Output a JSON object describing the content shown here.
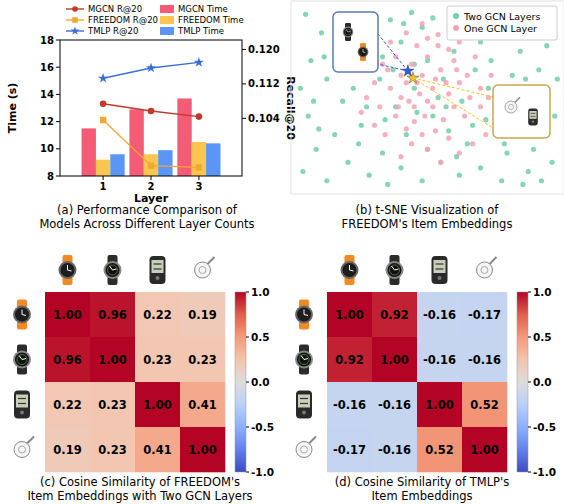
{
  "chart_data": [
    {
      "type": "bar",
      "title": [
        "(a) Performance Comparison of",
        "Models Across Different Layer Counts"
      ],
      "x_label": "Layer",
      "y_label": "Time (s)",
      "y2_label": "Recall@20",
      "categories": [
        "1",
        "2",
        "3"
      ],
      "ylim": [
        8,
        18
      ],
      "yticks": [
        8,
        10,
        12,
        14,
        16,
        18
      ],
      "y2lim": [
        0.0906,
        0.1222
      ],
      "y2ticks": [
        0.104,
        0.112,
        {
          "value": 0.12,
          "label": "0.120"
        }
      ],
      "grid": false,
      "legend": "top",
      "series": [
        {
          "name": "MGCN R@20",
          "type": "line",
          "axis": "y2",
          "color": "#c0392b",
          "marker": "circle",
          "values": [
            0.1074,
            0.1057,
            0.1044
          ]
        },
        {
          "name": "FREEDOM R@20",
          "type": "line",
          "axis": "y2",
          "color": "#f0a830",
          "marker": "square",
          "values": [
            0.1036,
            0.093,
            0.0926
          ]
        },
        {
          "name": "TMLP R@20",
          "type": "line",
          "axis": "y2",
          "color": "#3a6fd8",
          "marker": "star",
          "values": [
            0.1133,
            0.1157,
            0.117
          ]
        },
        {
          "name": "MGCN Time",
          "type": "bar",
          "color": "#f45b74",
          "values": [
            11.5,
            12.9,
            13.7
          ]
        },
        {
          "name": "FREEDOM Time",
          "type": "bar",
          "color": "#fbc64f",
          "values": [
            9.2,
            9.6,
            10.5
          ]
        },
        {
          "name": "TMLP Time",
          "type": "bar",
          "color": "#5b95f5",
          "values": [
            9.6,
            9.9,
            10.4
          ]
        }
      ]
    },
    {
      "type": "scatter",
      "title": [
        "(b) t-SNE Visualization of",
        "FREEDOM's Item Embeddings"
      ],
      "xlim": [
        0,
        100
      ],
      "ylim": [
        0,
        100
      ],
      "tick_labels": false,
      "legend": "upper right",
      "series": [
        {
          "name": "Two GCN Layers",
          "color": "#6fcfa8",
          "marker": "circle",
          "x": [
            3,
            8,
            5,
            2,
            6,
            10,
            4,
            12,
            15,
            18,
            12,
            20,
            25,
            22,
            28,
            35,
            33,
            38,
            33,
            36,
            40,
            42,
            45,
            40,
            44,
            48,
            50,
            52,
            50,
            48,
            55,
            58,
            56,
            60,
            62,
            65,
            63,
            68,
            70,
            72,
            74,
            78,
            80,
            82,
            85,
            88,
            90,
            92,
            95,
            97,
            98,
            99,
            86,
            7,
            32,
            24,
            52,
            46,
            70,
            9,
            11,
            27,
            37,
            54,
            61,
            67,
            73,
            79,
            87,
            93,
            45,
            34,
            57,
            41
          ],
          "values": [
            10,
            22,
            40,
            55,
            70,
            85,
            95,
            5,
            30,
            48,
            60,
            15,
            35,
            55,
            8,
            3,
            20,
            45,
            72,
            92,
            12,
            30,
            55,
            80,
            96,
            5,
            22,
            40,
            70,
            88,
            15,
            32,
            60,
            75,
            8,
            25,
            48,
            65,
            12,
            38,
            70,
            5,
            20,
            62,
            75,
            10,
            22,
            65,
            78,
            15,
            40,
            60,
            3,
            48,
            60,
            25,
            93,
            42,
            80,
            33,
            72,
            45,
            65,
            50,
            18,
            35,
            55,
            25,
            60,
            5,
            68,
            38,
            45,
            90
          ]
        },
        {
          "name": "One GCN Layer",
          "color": "#f6a3b3",
          "marker": "circle",
          "x": [
            38,
            40,
            42,
            45,
            47,
            50,
            52,
            48,
            44,
            50,
            55,
            58,
            60,
            62,
            56,
            53,
            48,
            42,
            36,
            35,
            38,
            46,
            54,
            60,
            65,
            66,
            64,
            58,
            50,
            44,
            34,
            32,
            30,
            40,
            46,
            52,
            57,
            49,
            43,
            61,
            68,
            70,
            70,
            72,
            67,
            30,
            27,
            36,
            42,
            50,
            54,
            62,
            74,
            73,
            40,
            55,
            62,
            25,
            33,
            48,
            58,
            45,
            53,
            39
          ],
          "values": [
            40,
            50,
            58,
            45,
            52,
            48,
            55,
            62,
            68,
            72,
            65,
            52,
            45,
            58,
            38,
            32,
            30,
            33,
            55,
            65,
            72,
            78,
            78,
            70,
            62,
            50,
            40,
            28,
            22,
            25,
            30,
            45,
            58,
            62,
            58,
            45,
            58,
            40,
            48,
            65,
            72,
            45,
            55,
            30,
            25,
            35,
            50,
            80,
            85,
            82,
            84,
            80,
            62,
            50,
            18,
            15,
            20,
            42,
            68,
            90,
            76,
            37,
            60,
            45
          ]
        },
        {
          "colors": [
            "#2d5fd3",
            "#f2c12e"
          ],
          "marker": "star",
          "x": [
            42.6,
            44.5
          ],
          "values": [
            64.3,
            60.5
          ]
        }
      ]
    },
    {
      "type": "heatmap",
      "title": [
        "(c) Cosine Similarity of FREEDOM's",
        "Item Embeddings with Two GCN Layers"
      ],
      "categories": [
        null,
        null,
        null,
        null
      ],
      "cells": [
        [
          1,
          0.96,
          0.22,
          0.19
        ],
        [
          0.96,
          1,
          0.23,
          0.23
        ],
        [
          0.22,
          0.23,
          1,
          0.41
        ],
        [
          0.19,
          0.23,
          0.41,
          1
        ]
      ],
      "value_labels": [
        [
          "1.00",
          "0.96",
          "0.22",
          "0.19"
        ],
        [
          "0.96",
          "1.00",
          "0.23",
          "0.23"
        ],
        [
          "0.22",
          "0.23",
          "1.00",
          "0.41"
        ],
        [
          "0.19",
          "0.23",
          "0.41",
          "1.00"
        ]
      ],
      "data_labels": true,
      "colorbar_range": [
        -1,
        1
      ],
      "colorbar_ticks": [
        {
          "value": 1,
          "label": "1.0"
        },
        0.5,
        {
          "value": 0,
          "label": "0.0"
        },
        -0.5,
        {
          "value": -1,
          "label": "-1.0"
        }
      ]
    },
    {
      "type": "heatmap",
      "title": [
        "(d) Cosine Similarity of TMLP's",
        "Item Embeddings"
      ],
      "categories": [
        null,
        null,
        null,
        null
      ],
      "cells": [
        [
          1,
          0.92,
          -0.16,
          -0.17
        ],
        [
          0.92,
          1,
          -0.16,
          -0.16
        ],
        [
          -0.16,
          -0.16,
          1,
          0.52
        ],
        [
          -0.17,
          -0.16,
          0.52,
          1
        ]
      ],
      "value_labels": [
        [
          "1.00",
          "0.92",
          "-0.16",
          "-0.17"
        ],
        [
          "0.92",
          "1.00",
          "-0.16",
          "-0.16"
        ],
        [
          "-0.16",
          "-0.16",
          "1.00",
          "0.52"
        ],
        [
          "-0.17",
          "-0.16",
          "0.52",
          "1.00"
        ]
      ],
      "data_labels": true,
      "colorbar_range": [
        -1,
        1
      ],
      "colorbar_ticks": [
        {
          "value": 1,
          "label": "1.0"
        },
        0.5,
        {
          "value": 0,
          "label": "0.0"
        },
        -0.5,
        {
          "value": -1,
          "label": "-1.0"
        }
      ]
    }
  ]
}
